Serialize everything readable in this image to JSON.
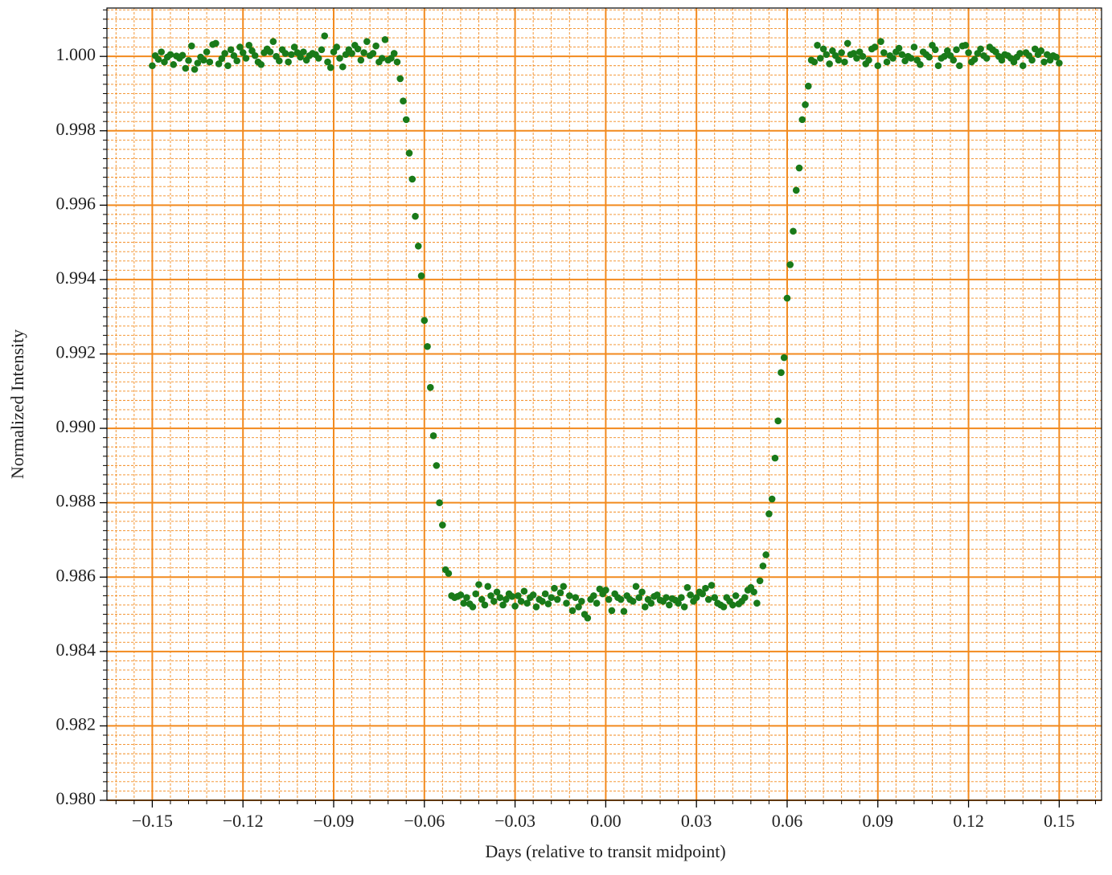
{
  "chart_data": {
    "type": "scatter",
    "x_label": "Days (relative to transit midpoint)",
    "y_label": "Normalized Intensity",
    "color": "#197a19",
    "grid_color": "#f28a1e",
    "grid": true,
    "minor_grid": true,
    "x_minor_per_major": 5,
    "y_minor_per_major": 8,
    "xlim": [
      -0.165,
      0.164
    ],
    "ylim": [
      0.98,
      1.0013
    ],
    "xticks": [
      {
        "value": -0.15,
        "label": "−0.15"
      },
      {
        "value": -0.12,
        "label": "−0.12"
      },
      {
        "value": -0.09,
        "label": "−0.09"
      },
      {
        "value": -0.06,
        "label": "−0.06"
      },
      {
        "value": -0.03,
        "label": "−0.03"
      },
      {
        "value": 0,
        "label": "0.00"
      },
      0.03,
      0.06,
      0.09,
      0.12,
      0.15
    ],
    "yticks": [
      {
        "value": 0.98,
        "label": "0.980"
      },
      0.982,
      0.984,
      0.986,
      0.988,
      {
        "value": 0.99,
        "label": "0.990"
      },
      0.992,
      0.994,
      0.996,
      0.998,
      {
        "value": 1,
        "label": "1.000"
      }
    ],
    "x": [
      -0.15,
      -0.149,
      -0.148,
      -0.147,
      -0.146,
      -0.145,
      -0.144,
      -0.143,
      -0.142,
      -0.141,
      -0.14,
      -0.139,
      -0.138,
      -0.137,
      -0.136,
      -0.135,
      -0.134,
      -0.133,
      -0.132,
      -0.131,
      -0.13,
      -0.129,
      -0.128,
      -0.127,
      -0.126,
      -0.125,
      -0.124,
      -0.123,
      -0.122,
      -0.121,
      -0.12,
      -0.119,
      -0.118,
      -0.117,
      -0.116,
      -0.115,
      -0.114,
      -0.113,
      -0.112,
      -0.111,
      -0.11,
      -0.109,
      -0.108,
      -0.107,
      -0.106,
      -0.105,
      -0.104,
      -0.103,
      -0.102,
      -0.101,
      -0.1,
      -0.099,
      -0.098,
      -0.097,
      -0.096,
      -0.095,
      -0.094,
      -0.093,
      -0.092,
      -0.091,
      -0.09,
      -0.089,
      -0.088,
      -0.087,
      -0.086,
      -0.085,
      -0.084,
      -0.083,
      -0.082,
      -0.081,
      -0.08,
      -0.079,
      -0.078,
      -0.077,
      -0.076,
      -0.075,
      -0.074,
      -0.073,
      -0.072,
      -0.071,
      -0.07,
      -0.069,
      -0.068,
      -0.067,
      -0.066,
      -0.065,
      -0.064,
      -0.063,
      -0.062,
      -0.061,
      -0.06,
      -0.059,
      -0.058,
      -0.057,
      -0.056,
      -0.055,
      -0.054,
      -0.053,
      -0.052,
      -0.051,
      -0.05,
      -0.049,
      -0.048,
      -0.047,
      -0.046,
      -0.045,
      -0.044,
      -0.043,
      -0.042,
      -0.041,
      -0.04,
      -0.039,
      -0.038,
      -0.037,
      -0.036,
      -0.035,
      -0.034,
      -0.033,
      -0.032,
      -0.031,
      -0.03,
      -0.029,
      -0.028,
      -0.027,
      -0.026,
      -0.025,
      -0.024,
      -0.023,
      -0.022,
      -0.021,
      -0.02,
      -0.019,
      -0.018,
      -0.017,
      -0.016,
      -0.015,
      -0.014,
      -0.013,
      -0.012,
      -0.011,
      -0.01,
      -0.009,
      -0.008,
      -0.007,
      -0.006,
      -0.005,
      -0.004,
      -0.003,
      -0.002,
      -0.001,
      0,
      0.001,
      0.002,
      0.003,
      0.004,
      0.005,
      0.006,
      0.007,
      0.008,
      0.009,
      0.01,
      0.011,
      0.012,
      0.013,
      0.014,
      0.015,
      0.016,
      0.017,
      0.018,
      0.019,
      0.02,
      0.021,
      0.022,
      0.023,
      0.024,
      0.025,
      0.026,
      0.027,
      0.028,
      0.029,
      0.03,
      0.031,
      0.032,
      0.033,
      0.034,
      0.035,
      0.036,
      0.037,
      0.038,
      0.039,
      0.04,
      0.041,
      0.042,
      0.043,
      0.044,
      0.045,
      0.046,
      0.047,
      0.048,
      0.049,
      0.05,
      0.051,
      0.052,
      0.053,
      0.054,
      0.055,
      0.056,
      0.057,
      0.058,
      0.059,
      0.06,
      0.061,
      0.062,
      0.063,
      0.064,
      0.065,
      0.066,
      0.067,
      0.068,
      0.069,
      0.07,
      0.071,
      0.072,
      0.073,
      0.074,
      0.075,
      0.076,
      0.077,
      0.078,
      0.079,
      0.08,
      0.081,
      0.082,
      0.083,
      0.084,
      0.085,
      0.086,
      0.087,
      0.088,
      0.089,
      0.09,
      0.091,
      0.092,
      0.093,
      0.094,
      0.095,
      0.096,
      0.097,
      0.098,
      0.099,
      0.1,
      0.101,
      0.102,
      0.103,
      0.104,
      0.105,
      0.106,
      0.107,
      0.108,
      0.109,
      0.11,
      0.111,
      0.112,
      0.113,
      0.114,
      0.115,
      0.116,
      0.117,
      0.118,
      0.119,
      0.12,
      0.121,
      0.122,
      0.123,
      0.124,
      0.125,
      0.126,
      0.127,
      0.128,
      0.129,
      0.13,
      0.131,
      0.132,
      0.133,
      0.134,
      0.135,
      0.136,
      0.137,
      0.138,
      0.139,
      0.14,
      0.141,
      0.142,
      0.143,
      0.144,
      0.145,
      0.146,
      0.147,
      0.148,
      0.149,
      0.15
    ],
    "values": [
      0.99975,
      1.00002,
      0.99992,
      1.00012,
      0.99985,
      0.99998,
      1.00005,
      0.99978,
      1.00001,
      0.99995,
      1.00003,
      0.99968,
      0.99989,
      1.00028,
      0.99965,
      0.99982,
      0.99998,
      0.9999,
      1.00012,
      0.99985,
      1.00032,
      1.00035,
      0.9998,
      0.99994,
      1.00008,
      0.99975,
      1.00018,
      1.00002,
      0.99988,
      1.00025,
      1.0001,
      0.99995,
      1.0003,
      1.00015,
      1.00002,
      0.99985,
      0.99978,
      1.0001,
      1.0002,
      1.00012,
      1.0004,
      1.0,
      0.99988,
      1.00018,
      1.00008,
      0.99985,
      1.00005,
      1.00025,
      1.0001,
      0.99998,
      1.00012,
      0.9999,
      1.00002,
      1.00008,
      1.00005,
      0.99995,
      1.00018,
      1.00055,
      0.99985,
      0.9997,
      1.00012,
      1.00025,
      0.99995,
      0.99972,
      1.00005,
      1.00018,
      1.00008,
      1.0003,
      1.0002,
      0.9999,
      1.0001,
      1.0004,
      1.00002,
      1.00008,
      1.00028,
      0.99985,
      0.99995,
      1.00045,
      0.9999,
      0.99995,
      1.00008,
      0.99985,
      0.9994,
      0.9988,
      0.9983,
      0.9974,
      0.9967,
      0.9957,
      0.9949,
      0.9941,
      0.9929,
      0.9922,
      0.9911,
      0.9898,
      0.989,
      0.988,
      0.9874,
      0.9862,
      0.9861,
      0.9855,
      0.98545,
      0.98548,
      0.98552,
      0.9853,
      0.98545,
      0.98528,
      0.9852,
      0.98555,
      0.9858,
      0.9854,
      0.98525,
      0.98575,
      0.9855,
      0.98535,
      0.9856,
      0.98545,
      0.98525,
      0.9854,
      0.98555,
      0.98548,
      0.98522,
      0.9855,
      0.98535,
      0.98562,
      0.9853,
      0.98545,
      0.98552,
      0.9852,
      0.9854,
      0.98535,
      0.98555,
      0.98528,
      0.98545,
      0.9857,
      0.9854,
      0.98558,
      0.98575,
      0.9853,
      0.9855,
      0.9851,
      0.98545,
      0.9852,
      0.98535,
      0.985,
      0.9849,
      0.9854,
      0.9855,
      0.9853,
      0.98568,
      0.98555,
      0.98565,
      0.9854,
      0.9851,
      0.98555,
      0.98545,
      0.9854,
      0.98508,
      0.9855,
      0.9854,
      0.98535,
      0.98575,
      0.98545,
      0.9856,
      0.9852,
      0.9854,
      0.9853,
      0.98548,
      0.98552,
      0.98538,
      0.98535,
      0.98545,
      0.98525,
      0.98542,
      0.98538,
      0.9853,
      0.98545,
      0.9852,
      0.98572,
      0.98552,
      0.98535,
      0.98545,
      0.9856,
      0.98555,
      0.9857,
      0.9854,
      0.98578,
      0.98545,
      0.9853,
      0.98525,
      0.9852,
      0.98545,
      0.98535,
      0.98525,
      0.9855,
      0.98528,
      0.98535,
      0.98545,
      0.98565,
      0.98572,
      0.9856,
      0.9853,
      0.9859,
      0.9863,
      0.9866,
      0.9877,
      0.9881,
      0.9892,
      0.9902,
      0.9915,
      0.9919,
      0.9935,
      0.9944,
      0.9953,
      0.9964,
      0.997,
      0.9983,
      0.9987,
      0.9992,
      0.9999,
      0.99985,
      1.0003,
      0.99995,
      1.0002,
      1.00005,
      0.9998,
      1.00015,
      1.00002,
      0.9999,
      1.0001,
      0.99985,
      1.00035,
      1.00005,
      1.00008,
      0.99995,
      1.00012,
      1.0,
      0.9998,
      0.9999,
      1.0002,
      1.00025,
      0.99975,
      1.0004,
      1.0001,
      0.99985,
      1.00002,
      0.99995,
      1.00012,
      1.00022,
      1.00005,
      0.99988,
      1.0,
      0.99995,
      1.00025,
      0.9999,
      0.99978,
      1.00012,
      1.00005,
      0.99998,
      1.0003,
      1.00018,
      0.99975,
      0.99995,
      1.0,
      1.00015,
      1.00002,
      0.9999,
      1.00018,
      0.99975,
      1.00028,
      1.0003,
      1.0001,
      0.99985,
      0.99992,
      1.00008,
      1.0002,
      1.00002,
      0.99995,
      1.00025,
      1.00018,
      1.00012,
      1.0,
      0.9999,
      1.00005,
      1.00002,
      0.99995,
      0.99985,
      0.99998,
      1.00008,
      0.99975,
      1.0001,
      1.00002,
      0.9999,
      1.0002,
      1.00005,
      1.00015,
      0.99985,
      1.00005,
      0.9999,
      1.00002,
      0.99998,
      0.99982
    ]
  }
}
